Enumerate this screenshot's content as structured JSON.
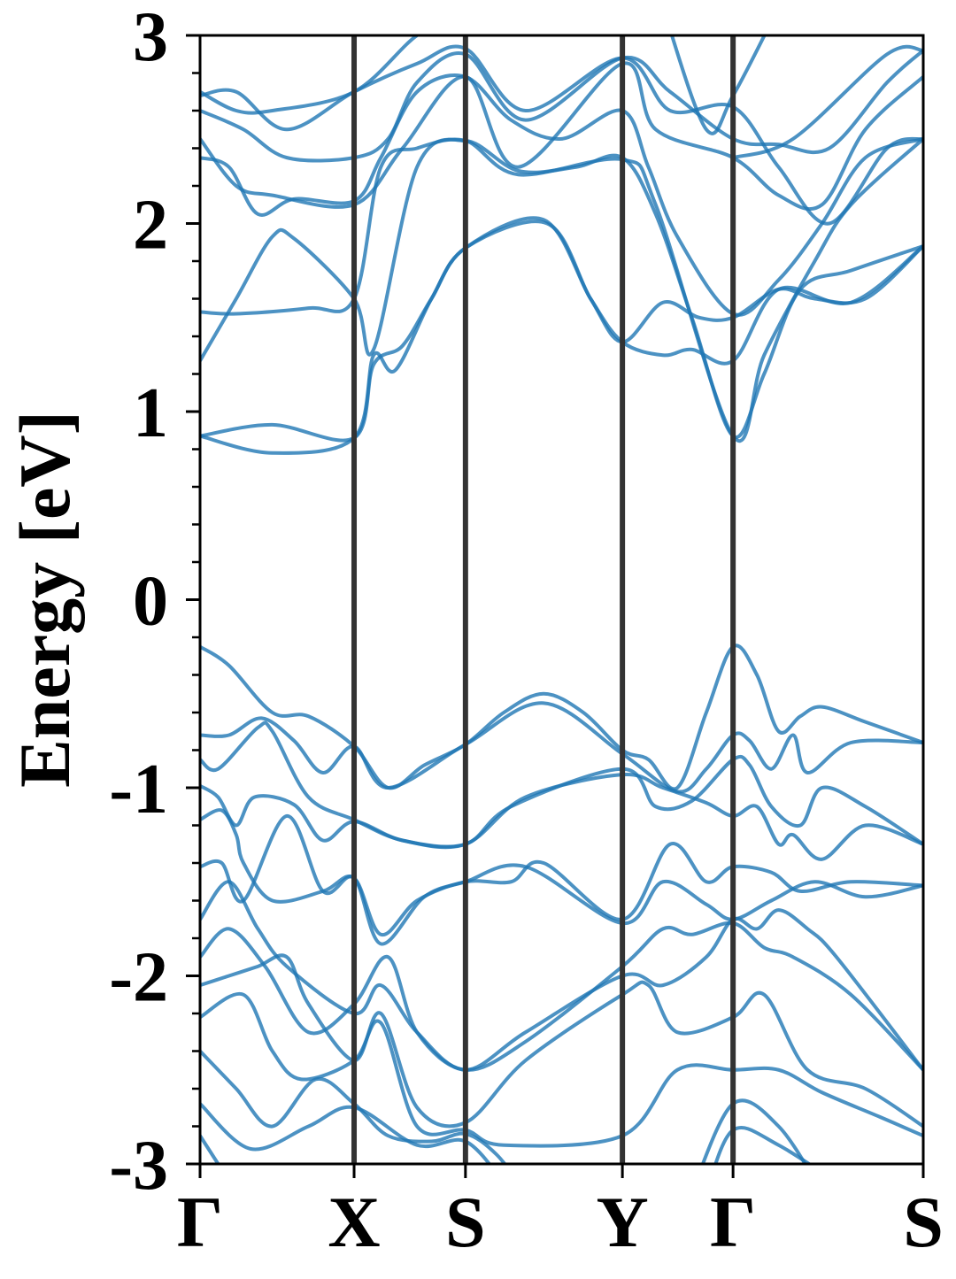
{
  "chart_data": {
    "type": "line",
    "title": "",
    "xlabel": "",
    "ylabel": "Energy [eV]",
    "ylim": [
      -3,
      3
    ],
    "yticks": [
      -3,
      -2,
      -1,
      0,
      1,
      2,
      3
    ],
    "ytick_labels": [
      "-3",
      "-2",
      "-1",
      "0",
      "1",
      "2",
      "3"
    ],
    "yminor_step": 0.2,
    "kpoints": [
      {
        "label": "Γ",
        "k": 0
      },
      {
        "label": "X",
        "k": 0.213
      },
      {
        "label": "S",
        "k": 0.367
      },
      {
        "label": "Y",
        "k": 0.584
      },
      {
        "label": "Γ",
        "k": 0.737
      },
      {
        "label": "S",
        "k": 1.0
      }
    ],
    "xlim": [
      0,
      1
    ],
    "line_color": "#1f77b4",
    "kline_color": "#333333",
    "bands": [
      [
        [
          0,
          -0.25
        ],
        [
          0.04,
          -0.35
        ],
        [
          0.1,
          -0.6
        ],
        [
          0.15,
          -0.62
        ],
        [
          0.213,
          -0.78
        ],
        [
          0.26,
          -1.0
        ],
        [
          0.31,
          -0.88
        ],
        [
          0.367,
          -0.77
        ],
        [
          0.42,
          -0.6
        ],
        [
          0.475,
          -0.5
        ],
        [
          0.53,
          -0.6
        ],
        [
          0.584,
          -0.8
        ],
        [
          0.62,
          -0.85
        ],
        [
          0.66,
          -1.0
        ],
        [
          0.7,
          -0.6
        ],
        [
          0.737,
          -0.25
        ],
        [
          0.77,
          -0.4
        ],
        [
          0.8,
          -0.7
        ],
        [
          0.83,
          -0.62
        ],
        [
          0.86,
          -0.57
        ],
        [
          0.92,
          -0.65
        ],
        [
          1,
          -0.76
        ]
      ],
      [
        [
          0,
          -0.72
        ],
        [
          0.04,
          -0.72
        ],
        [
          0.085,
          -0.63
        ],
        [
          0.13,
          -0.75
        ],
        [
          0.17,
          -0.92
        ],
        [
          0.213,
          -0.78
        ],
        [
          0.26,
          -1.0
        ],
        [
          0.367,
          -0.77
        ],
        [
          0.475,
          -0.55
        ],
        [
          0.584,
          -0.82
        ],
        [
          0.66,
          -1.02
        ],
        [
          0.7,
          -0.9
        ],
        [
          0.737,
          -0.72
        ],
        [
          0.76,
          -0.75
        ],
        [
          0.79,
          -0.9
        ],
        [
          0.82,
          -0.72
        ],
        [
          0.84,
          -0.92
        ],
        [
          0.9,
          -0.76
        ],
        [
          1,
          -0.76
        ]
      ],
      [
        [
          0,
          -0.85
        ],
        [
          0.025,
          -0.9
        ],
        [
          0.08,
          -0.68
        ],
        [
          0.1,
          -0.7
        ],
        [
          0.15,
          -1.05
        ],
        [
          0.213,
          -1.17
        ],
        [
          0.28,
          -1.28
        ],
        [
          0.367,
          -1.3
        ],
        [
          0.43,
          -1.1
        ],
        [
          0.584,
          -0.9
        ],
        [
          0.63,
          -1.1
        ],
        [
          0.68,
          -1.07
        ],
        [
          0.737,
          -0.85
        ],
        [
          0.76,
          -0.88
        ],
        [
          0.79,
          -1.1
        ],
        [
          0.83,
          -1.2
        ],
        [
          0.86,
          -1.0
        ],
        [
          0.92,
          -1.1
        ],
        [
          1,
          -1.3
        ]
      ],
      [
        [
          0,
          -0.99
        ],
        [
          0.025,
          -1.05
        ],
        [
          0.05,
          -1.2
        ],
        [
          0.075,
          -1.05
        ],
        [
          0.13,
          -1.09
        ],
        [
          0.17,
          -1.28
        ],
        [
          0.213,
          -1.18
        ],
        [
          0.28,
          -1.28
        ],
        [
          0.367,
          -1.3
        ],
        [
          0.45,
          -1.05
        ],
        [
          0.584,
          -0.93
        ],
        [
          0.64,
          -1.0
        ],
        [
          0.7,
          -1.08
        ],
        [
          0.737,
          -1.15
        ],
        [
          0.77,
          -1.1
        ],
        [
          0.8,
          -1.3
        ],
        [
          0.82,
          -1.25
        ],
        [
          0.86,
          -1.38
        ],
        [
          0.92,
          -1.2
        ],
        [
          1,
          -1.3
        ]
      ],
      [
        [
          0,
          -1.17
        ],
        [
          0.03,
          -1.12
        ],
        [
          0.05,
          -1.25
        ],
        [
          0.06,
          -1.4
        ],
        [
          0.1,
          -1.6
        ],
        [
          0.17,
          -1.55
        ],
        [
          0.213,
          -1.48
        ],
        [
          0.25,
          -1.78
        ],
        [
          0.3,
          -1.6
        ],
        [
          0.367,
          -1.5
        ],
        [
          0.43,
          -1.5
        ],
        [
          0.475,
          -1.4
        ],
        [
          0.584,
          -1.7
        ],
        [
          0.65,
          -1.3
        ],
        [
          0.7,
          -1.5
        ],
        [
          0.737,
          -1.42
        ],
        [
          0.79,
          -1.45
        ],
        [
          0.83,
          -1.55
        ],
        [
          0.9,
          -1.5
        ],
        [
          1,
          -1.52
        ]
      ],
      [
        [
          0,
          -1.42
        ],
        [
          0.03,
          -1.4
        ],
        [
          0.06,
          -1.6
        ],
        [
          0.12,
          -1.15
        ],
        [
          0.17,
          -1.55
        ],
        [
          0.213,
          -1.48
        ],
        [
          0.25,
          -1.83
        ],
        [
          0.31,
          -1.58
        ],
        [
          0.367,
          -1.5
        ],
        [
          0.45,
          -1.42
        ],
        [
          0.584,
          -1.72
        ],
        [
          0.64,
          -1.5
        ],
        [
          0.7,
          -1.62
        ],
        [
          0.737,
          -1.7
        ],
        [
          0.79,
          -1.6
        ],
        [
          0.85,
          -1.5
        ],
        [
          0.92,
          -1.58
        ],
        [
          1,
          -1.52
        ]
      ],
      [
        [
          0,
          -1.7
        ],
        [
          0.04,
          -1.5
        ],
        [
          0.08,
          -1.75
        ],
        [
          0.12,
          -1.95
        ],
        [
          0.213,
          -2.2
        ],
        [
          0.25,
          -2.05
        ],
        [
          0.3,
          -2.3
        ],
        [
          0.367,
          -2.5
        ],
        [
          0.45,
          -2.3
        ],
        [
          0.584,
          -2.0
        ],
        [
          0.64,
          -2.05
        ],
        [
          0.7,
          -1.9
        ],
        [
          0.737,
          -1.7
        ],
        [
          0.77,
          -1.75
        ],
        [
          0.8,
          -1.65
        ],
        [
          0.84,
          -1.75
        ],
        [
          0.88,
          -1.9
        ],
        [
          1,
          -2.5
        ]
      ],
      [
        [
          0,
          -1.9
        ],
        [
          0.04,
          -1.75
        ],
        [
          0.09,
          -1.95
        ],
        [
          0.15,
          -2.3
        ],
        [
          0.213,
          -2.15
        ],
        [
          0.26,
          -1.9
        ],
        [
          0.3,
          -2.3
        ],
        [
          0.367,
          -2.5
        ],
        [
          0.45,
          -2.35
        ],
        [
          0.584,
          -1.95
        ],
        [
          0.64,
          -1.75
        ],
        [
          0.68,
          -1.78
        ],
        [
          0.737,
          -1.72
        ],
        [
          0.78,
          -1.85
        ],
        [
          0.82,
          -1.9
        ],
        [
          0.9,
          -2.1
        ],
        [
          1,
          -2.5
        ]
      ],
      [
        [
          0,
          -2.05
        ],
        [
          0.04,
          -2.0
        ],
        [
          0.08,
          -1.95
        ],
        [
          0.12,
          -1.9
        ],
        [
          0.15,
          -2.15
        ],
        [
          0.213,
          -2.45
        ],
        [
          0.25,
          -2.2
        ],
        [
          0.3,
          -2.7
        ],
        [
          0.367,
          -2.78
        ],
        [
          0.45,
          -2.45
        ],
        [
          0.584,
          -2.1
        ],
        [
          0.62,
          -2.05
        ],
        [
          0.66,
          -2.3
        ],
        [
          0.737,
          -2.22
        ],
        [
          0.78,
          -2.1
        ],
        [
          0.84,
          -2.5
        ],
        [
          0.92,
          -2.6
        ],
        [
          1,
          -2.8
        ]
      ],
      [
        [
          0,
          -2.22
        ],
        [
          0.06,
          -2.1
        ],
        [
          0.1,
          -2.4
        ],
        [
          0.14,
          -2.55
        ],
        [
          0.213,
          -2.45
        ],
        [
          0.25,
          -2.25
        ],
        [
          0.3,
          -2.8
        ],
        [
          0.367,
          -2.82
        ],
        [
          0.42,
          -2.9
        ],
        [
          0.584,
          -2.85
        ],
        [
          0.66,
          -2.5
        ],
        [
          0.737,
          -2.5
        ],
        [
          0.8,
          -2.5
        ],
        [
          0.86,
          -2.62
        ],
        [
          0.94,
          -2.75
        ],
        [
          1,
          -2.85
        ]
      ],
      [
        [
          0,
          -2.4
        ],
        [
          0.05,
          -2.6
        ],
        [
          0.1,
          -2.8
        ],
        [
          0.16,
          -2.55
        ],
        [
          0.213,
          -2.68
        ],
        [
          0.26,
          -2.85
        ],
        [
          0.32,
          -2.88
        ],
        [
          0.367,
          -2.84
        ],
        [
          0.41,
          -2.95
        ],
        [
          0.45,
          -3.15
        ]
      ],
      [
        [
          0,
          -2.68
        ],
        [
          0.07,
          -2.92
        ],
        [
          0.15,
          -2.8
        ],
        [
          0.213,
          -2.7
        ],
        [
          0.3,
          -2.9
        ],
        [
          0.367,
          -2.88
        ],
        [
          0.42,
          -3.1
        ]
      ],
      [
        [
          0,
          -2.85
        ],
        [
          0.05,
          -3.15
        ]
      ],
      [
        [
          0.68,
          -3.15
        ],
        [
          0.737,
          -2.68
        ],
        [
          0.8,
          -2.8
        ],
        [
          0.86,
          -3.15
        ]
      ],
      [
        [
          0.7,
          -3.15
        ],
        [
          0.737,
          -2.82
        ],
        [
          0.8,
          -2.9
        ],
        [
          0.9,
          -3.15
        ]
      ],
      [
        [
          0,
          0.87
        ],
        [
          0.1,
          0.93
        ],
        [
          0.213,
          0.86
        ],
        [
          0.24,
          1.25
        ],
        [
          0.28,
          1.35
        ],
        [
          0.32,
          1.6
        ],
        [
          0.367,
          1.87
        ],
        [
          0.48,
          2.0
        ],
        [
          0.54,
          1.6
        ],
        [
          0.584,
          1.37
        ],
        [
          0.64,
          1.58
        ],
        [
          0.69,
          1.5
        ],
        [
          0.737,
          1.5
        ],
        [
          0.8,
          1.65
        ],
        [
          0.85,
          1.6
        ],
        [
          0.92,
          1.6
        ],
        [
          1,
          1.88
        ]
      ],
      [
        [
          0,
          0.87
        ],
        [
          0.1,
          0.78
        ],
        [
          0.213,
          0.86
        ],
        [
          0.24,
          1.3
        ],
        [
          0.27,
          1.22
        ],
        [
          0.32,
          1.6
        ],
        [
          0.367,
          1.87
        ],
        [
          0.475,
          2.02
        ],
        [
          0.54,
          1.6
        ],
        [
          0.584,
          1.37
        ],
        [
          0.64,
          1.3
        ],
        [
          0.68,
          1.33
        ],
        [
          0.737,
          1.27
        ],
        [
          0.8,
          1.65
        ],
        [
          0.9,
          1.58
        ],
        [
          1,
          1.88
        ]
      ],
      [
        [
          0,
          1.27
        ],
        [
          0.05,
          1.6
        ],
        [
          0.1,
          1.93
        ],
        [
          0.13,
          1.92
        ],
        [
          0.213,
          1.6
        ],
        [
          0.24,
          1.33
        ],
        [
          0.3,
          2.3
        ],
        [
          0.367,
          2.44
        ],
        [
          0.44,
          2.28
        ],
        [
          0.52,
          2.3
        ],
        [
          0.584,
          2.35
        ],
        [
          0.63,
          2.05
        ],
        [
          0.68,
          1.5
        ],
        [
          0.737,
          0.87
        ],
        [
          0.78,
          1.2
        ],
        [
          0.83,
          1.65
        ],
        [
          0.9,
          1.75
        ],
        [
          1,
          1.88
        ]
      ],
      [
        [
          0,
          1.53
        ],
        [
          0.05,
          1.52
        ],
        [
          0.15,
          1.55
        ],
        [
          0.213,
          1.6
        ],
        [
          0.25,
          2.3
        ],
        [
          0.3,
          2.4
        ],
        [
          0.367,
          2.44
        ],
        [
          0.44,
          2.26
        ],
        [
          0.584,
          2.34
        ],
        [
          0.63,
          2.1
        ],
        [
          0.737,
          0.87
        ],
        [
          0.78,
          1.3
        ],
        [
          0.85,
          1.8
        ],
        [
          0.9,
          2.1
        ],
        [
          1,
          2.45
        ]
      ],
      [
        [
          0,
          2.35
        ],
        [
          0.04,
          2.3
        ],
        [
          0.08,
          2.05
        ],
        [
          0.13,
          2.13
        ],
        [
          0.213,
          2.12
        ],
        [
          0.25,
          2.35
        ],
        [
          0.3,
          2.7
        ],
        [
          0.367,
          2.78
        ],
        [
          0.43,
          2.55
        ],
        [
          0.5,
          2.45
        ],
        [
          0.584,
          2.6
        ],
        [
          0.62,
          2.3
        ],
        [
          0.66,
          1.93
        ],
        [
          0.737,
          1.52
        ],
        [
          0.8,
          1.7
        ],
        [
          0.86,
          2.0
        ],
        [
          0.92,
          2.35
        ],
        [
          1,
          2.45
        ]
      ],
      [
        [
          0,
          2.45
        ],
        [
          0.05,
          2.2
        ],
        [
          0.1,
          2.15
        ],
        [
          0.213,
          2.1
        ],
        [
          0.28,
          2.4
        ],
        [
          0.367,
          2.78
        ],
        [
          0.44,
          2.3
        ],
        [
          0.584,
          2.85
        ],
        [
          0.63,
          2.5
        ],
        [
          0.737,
          2.35
        ],
        [
          0.8,
          2.15
        ],
        [
          0.86,
          2.1
        ],
        [
          0.92,
          2.5
        ],
        [
          1,
          2.78
        ]
      ],
      [
        [
          0,
          2.6
        ],
        [
          0.06,
          2.5
        ],
        [
          0.12,
          2.35
        ],
        [
          0.213,
          2.35
        ],
        [
          0.26,
          2.45
        ],
        [
          0.3,
          2.75
        ],
        [
          0.367,
          2.9
        ],
        [
          0.45,
          2.55
        ],
        [
          0.584,
          2.88
        ],
        [
          0.65,
          2.7
        ],
        [
          0.737,
          2.45
        ],
        [
          0.8,
          2.42
        ],
        [
          0.87,
          2.4
        ],
        [
          0.95,
          2.75
        ],
        [
          1,
          2.92
        ]
      ],
      [
        [
          0,
          2.68
        ],
        [
          0.05,
          2.7
        ],
        [
          0.12,
          2.5
        ],
        [
          0.213,
          2.7
        ],
        [
          0.3,
          2.85
        ],
        [
          0.367,
          2.93
        ],
        [
          0.45,
          2.6
        ],
        [
          0.584,
          2.88
        ],
        [
          0.65,
          2.6
        ],
        [
          0.737,
          2.62
        ],
        [
          0.8,
          2.3
        ],
        [
          0.87,
          2.0
        ],
        [
          0.95,
          2.4
        ],
        [
          1,
          2.45
        ]
      ],
      [
        [
          0,
          2.7
        ],
        [
          0.05,
          2.6
        ],
        [
          0.1,
          2.6
        ],
        [
          0.213,
          2.7
        ],
        [
          0.3,
          3.0
        ],
        [
          0.36,
          3.1
        ]
      ],
      [
        [
          0.64,
          3.15
        ],
        [
          0.7,
          2.5
        ],
        [
          0.737,
          2.68
        ],
        [
          0.8,
          3.15
        ]
      ],
      [
        [
          0.737,
          2.35
        ],
        [
          0.82,
          2.45
        ],
        [
          0.95,
          2.9
        ],
        [
          1,
          2.92
        ]
      ]
    ]
  }
}
